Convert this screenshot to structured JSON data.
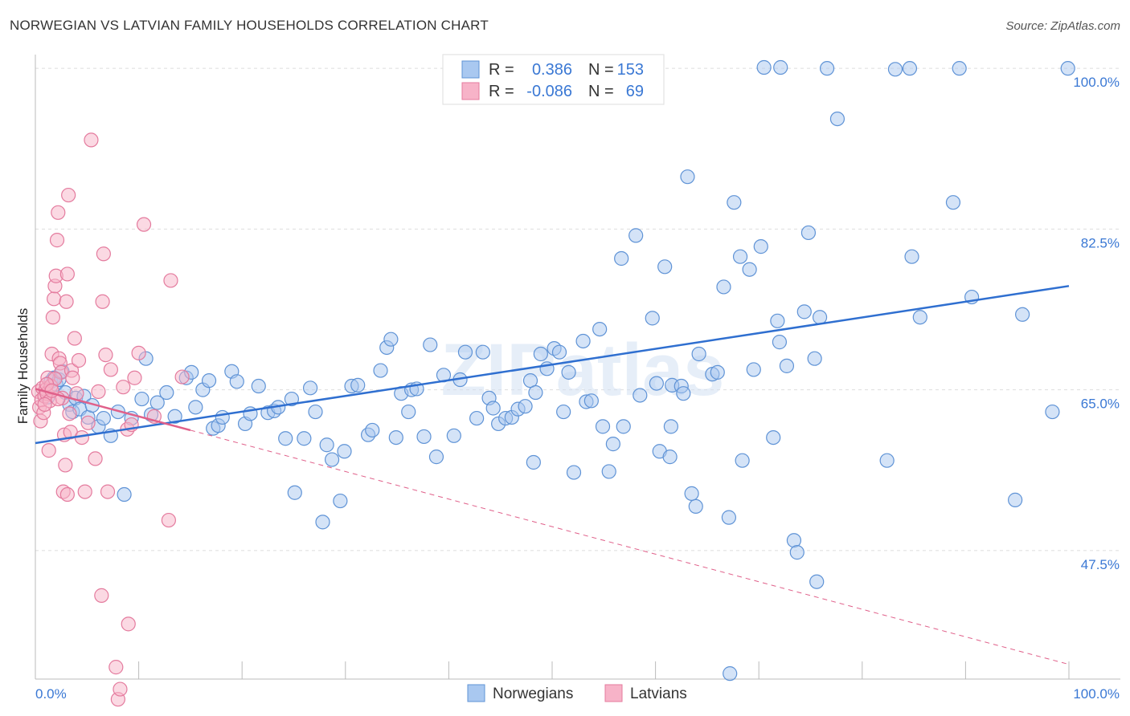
{
  "title": "NORWEGIAN VS LATVIAN FAMILY HOUSEHOLDS CORRELATION CHART",
  "source": "Source: ZipAtlas.com",
  "watermark": "ZIPatlas",
  "colors": {
    "norwegian_fill": "#a9c8f0",
    "norwegian_stroke": "#5f93d6",
    "norwegian_line": "#2f6fd0",
    "latvian_fill": "#f7b3c8",
    "latvian_stroke": "#e47b9e",
    "latvian_line": "#e0608a",
    "value_text": "#3a78d4",
    "grid": "#dddddd"
  },
  "legend": {
    "rows": [
      {
        "r_label": "R =",
        "r_value": "0.386",
        "n_label": "N =",
        "n_value": "153"
      },
      {
        "r_label": "R =",
        "r_value": "-0.086",
        "n_label": "N =",
        "n_value": "69"
      }
    ]
  },
  "chart_data": {
    "type": "scatter",
    "title": "NORWEGIAN VS LATVIAN FAMILY HOUSEHOLDS CORRELATION CHART",
    "xlabel": "",
    "ylabel": "Family Households",
    "xlim": [
      0,
      100
    ],
    "ylim": [
      33.5,
      101.5
    ],
    "x_tick_labels": [
      "0.0%",
      "100.0%"
    ],
    "y_ticks": [
      47.5,
      65.0,
      82.5,
      100.0
    ],
    "y_tick_labels": [
      "47.5%",
      "65.0%",
      "82.5%",
      "100.0%"
    ],
    "grid": true,
    "legend_position": "top-center",
    "series": [
      {
        "name": "Norwegians",
        "r": 0.386,
        "n": 153,
        "trend": {
          "x": [
            0,
            100
          ],
          "y": [
            59.2,
            76.3
          ]
        },
        "points": [
          [
            1.2,
            64.2
          ],
          [
            1.5,
            65.9
          ],
          [
            1.8,
            66.3
          ],
          [
            2.0,
            65.6
          ],
          [
            2.3,
            66.1
          ],
          [
            2.6,
            67.0
          ],
          [
            2.9,
            64.7
          ],
          [
            3.3,
            63.4
          ],
          [
            3.6,
            62.6
          ],
          [
            3.9,
            64.1
          ],
          [
            4.3,
            62.9
          ],
          [
            4.7,
            64.3
          ],
          [
            5.1,
            62.0
          ],
          [
            5.5,
            63.3
          ],
          [
            6.1,
            61.0
          ],
          [
            6.6,
            61.9
          ],
          [
            7.3,
            60.0
          ],
          [
            8.0,
            62.6
          ],
          [
            8.6,
            53.6
          ],
          [
            9.3,
            61.9
          ],
          [
            10.3,
            64.0
          ],
          [
            10.7,
            68.4
          ],
          [
            11.2,
            62.3
          ],
          [
            11.8,
            63.6
          ],
          [
            12.7,
            64.7
          ],
          [
            13.5,
            62.1
          ],
          [
            14.6,
            66.3
          ],
          [
            15.1,
            66.9
          ],
          [
            15.5,
            63.1
          ],
          [
            16.2,
            65.0
          ],
          [
            16.8,
            66.0
          ],
          [
            17.2,
            60.8
          ],
          [
            17.7,
            61.1
          ],
          [
            18.1,
            62.0
          ],
          [
            19.0,
            67.0
          ],
          [
            19.5,
            65.9
          ],
          [
            20.3,
            61.3
          ],
          [
            20.8,
            62.4
          ],
          [
            21.6,
            65.4
          ],
          [
            22.5,
            62.5
          ],
          [
            23.1,
            62.7
          ],
          [
            23.5,
            63.1
          ],
          [
            24.2,
            59.7
          ],
          [
            24.8,
            64.0
          ],
          [
            25.1,
            53.8
          ],
          [
            26.0,
            59.7
          ],
          [
            26.6,
            65.2
          ],
          [
            27.1,
            62.6
          ],
          [
            27.8,
            50.6
          ],
          [
            28.2,
            59.0
          ],
          [
            28.7,
            57.4
          ],
          [
            29.5,
            52.9
          ],
          [
            29.9,
            58.3
          ],
          [
            30.6,
            65.4
          ],
          [
            31.2,
            65.5
          ],
          [
            32.2,
            60.1
          ],
          [
            32.6,
            60.6
          ],
          [
            33.4,
            67.1
          ],
          [
            34.0,
            69.6
          ],
          [
            34.4,
            70.5
          ],
          [
            34.9,
            59.8
          ],
          [
            35.4,
            64.6
          ],
          [
            36.1,
            62.6
          ],
          [
            36.4,
            65.0
          ],
          [
            36.9,
            65.1
          ],
          [
            37.6,
            59.9
          ],
          [
            38.2,
            69.9
          ],
          [
            38.8,
            57.7
          ],
          [
            39.5,
            66.6
          ],
          [
            40.5,
            60.0
          ],
          [
            41.1,
            66.1
          ],
          [
            41.6,
            69.1
          ],
          [
            42.7,
            61.9
          ],
          [
            43.3,
            69.1
          ],
          [
            43.9,
            64.1
          ],
          [
            44.3,
            63.0
          ],
          [
            44.8,
            61.3
          ],
          [
            45.5,
            61.9
          ],
          [
            46.1,
            62.0
          ],
          [
            46.7,
            62.9
          ],
          [
            47.4,
            63.2
          ],
          [
            47.9,
            66.0
          ],
          [
            48.4,
            64.7
          ],
          [
            48.9,
            68.9
          ],
          [
            49.5,
            67.3
          ],
          [
            50.2,
            69.5
          ],
          [
            50.7,
            69.1
          ],
          [
            51.1,
            62.6
          ],
          [
            51.6,
            66.9
          ],
          [
            52.1,
            56.0
          ],
          [
            53.0,
            70.3
          ],
          [
            53.3,
            63.7
          ],
          [
            53.8,
            63.8
          ],
          [
            54.6,
            71.6
          ],
          [
            54.9,
            61.0
          ],
          [
            55.5,
            56.1
          ],
          [
            55.9,
            59.1
          ],
          [
            56.7,
            79.3
          ],
          [
            56.9,
            61.0
          ],
          [
            58.1,
            81.8
          ],
          [
            58.5,
            64.4
          ],
          [
            59.7,
            72.8
          ],
          [
            60.1,
            65.7
          ],
          [
            60.4,
            58.3
          ],
          [
            60.9,
            78.4
          ],
          [
            61.4,
            57.7
          ],
          [
            61.5,
            61.0
          ],
          [
            61.6,
            65.5
          ],
          [
            62.5,
            65.4
          ],
          [
            62.7,
            64.6
          ],
          [
            63.1,
            88.2
          ],
          [
            63.5,
            53.7
          ],
          [
            63.9,
            52.3
          ],
          [
            64.2,
            68.9
          ],
          [
            65.5,
            66.7
          ],
          [
            66.0,
            66.9
          ],
          [
            66.6,
            76.2
          ],
          [
            67.1,
            51.1
          ],
          [
            67.6,
            85.4
          ],
          [
            68.2,
            79.5
          ],
          [
            68.4,
            57.3
          ],
          [
            69.1,
            78.1
          ],
          [
            69.5,
            67.2
          ],
          [
            70.2,
            80.6
          ],
          [
            70.5,
            100.1
          ],
          [
            71.4,
            59.8
          ],
          [
            72.0,
            70.2
          ],
          [
            72.1,
            100.1
          ],
          [
            72.7,
            67.6
          ],
          [
            73.4,
            48.6
          ],
          [
            73.7,
            47.3
          ],
          [
            74.4,
            73.5
          ],
          [
            74.8,
            82.1
          ],
          [
            75.4,
            68.4
          ],
          [
            75.9,
            72.9
          ],
          [
            76.6,
            100.0
          ],
          [
            77.6,
            94.5
          ],
          [
            82.4,
            57.3
          ],
          [
            84.8,
            79.5
          ],
          [
            84.6,
            100.0
          ],
          [
            85.6,
            72.9
          ],
          [
            88.8,
            85.4
          ],
          [
            89.4,
            100.0
          ],
          [
            90.6,
            75.1
          ],
          [
            94.8,
            53.0
          ],
          [
            95.5,
            73.2
          ],
          [
            99.9,
            100.0
          ],
          [
            98.4,
            62.6
          ],
          [
            75.6,
            44.1
          ],
          [
            67.2,
            34.1
          ],
          [
            83.2,
            99.9
          ],
          [
            71.8,
            72.5
          ],
          [
            48.2,
            57.1
          ]
        ]
      },
      {
        "name": "Latvians",
        "r": -0.086,
        "n": 69,
        "trend": {
          "x": [
            0,
            100
          ],
          "y": [
            65.1,
            35.1
          ]
        },
        "points": [
          [
            0.3,
            64.8
          ],
          [
            0.4,
            63.1
          ],
          [
            0.5,
            61.6
          ],
          [
            0.6,
            63.9
          ],
          [
            0.7,
            65.2
          ],
          [
            0.8,
            62.5
          ],
          [
            0.9,
            64.3
          ],
          [
            1.0,
            65.0
          ],
          [
            1.1,
            64.6
          ],
          [
            1.2,
            66.3
          ],
          [
            1.3,
            58.4
          ],
          [
            1.4,
            63.8
          ],
          [
            1.5,
            65.4
          ],
          [
            1.6,
            68.9
          ],
          [
            1.7,
            72.9
          ],
          [
            1.8,
            74.9
          ],
          [
            1.9,
            76.3
          ],
          [
            2.0,
            77.4
          ],
          [
            2.1,
            81.3
          ],
          [
            2.2,
            84.3
          ],
          [
            2.3,
            68.4
          ],
          [
            2.4,
            67.9
          ],
          [
            2.5,
            66.9
          ],
          [
            2.6,
            64.1
          ],
          [
            2.7,
            53.9
          ],
          [
            2.8,
            60.1
          ],
          [
            2.9,
            56.8
          ],
          [
            3.0,
            74.6
          ],
          [
            3.1,
            77.6
          ],
          [
            3.2,
            86.2
          ],
          [
            3.3,
            62.4
          ],
          [
            3.4,
            60.4
          ],
          [
            3.5,
            67.1
          ],
          [
            3.6,
            66.3
          ],
          [
            3.8,
            70.6
          ],
          [
            4.0,
            64.6
          ],
          [
            4.2,
            68.2
          ],
          [
            4.5,
            59.8
          ],
          [
            4.8,
            53.9
          ],
          [
            5.1,
            61.4
          ],
          [
            5.4,
            92.2
          ],
          [
            5.8,
            57.5
          ],
          [
            6.1,
            64.8
          ],
          [
            6.4,
            42.6
          ],
          [
            6.5,
            74.6
          ],
          [
            6.6,
            79.8
          ],
          [
            6.8,
            68.8
          ],
          [
            7.0,
            53.9
          ],
          [
            7.3,
            67.2
          ],
          [
            7.8,
            34.8
          ],
          [
            8.0,
            31.3
          ],
          [
            8.2,
            32.4
          ],
          [
            8.5,
            65.3
          ],
          [
            8.9,
            60.7
          ],
          [
            9.3,
            61.2
          ],
          [
            9.6,
            66.3
          ],
          [
            10.0,
            69.0
          ],
          [
            10.5,
            83.0
          ],
          [
            11.5,
            62.1
          ],
          [
            12.9,
            50.8
          ],
          [
            13.1,
            76.9
          ],
          [
            14.2,
            66.4
          ],
          [
            3.1,
            53.6
          ],
          [
            1.9,
            66.2
          ],
          [
            9.0,
            39.5
          ],
          [
            0.9,
            63.4
          ],
          [
            2.2,
            64.0
          ],
          [
            1.1,
            65.6
          ],
          [
            1.6,
            64.9
          ]
        ]
      }
    ]
  }
}
